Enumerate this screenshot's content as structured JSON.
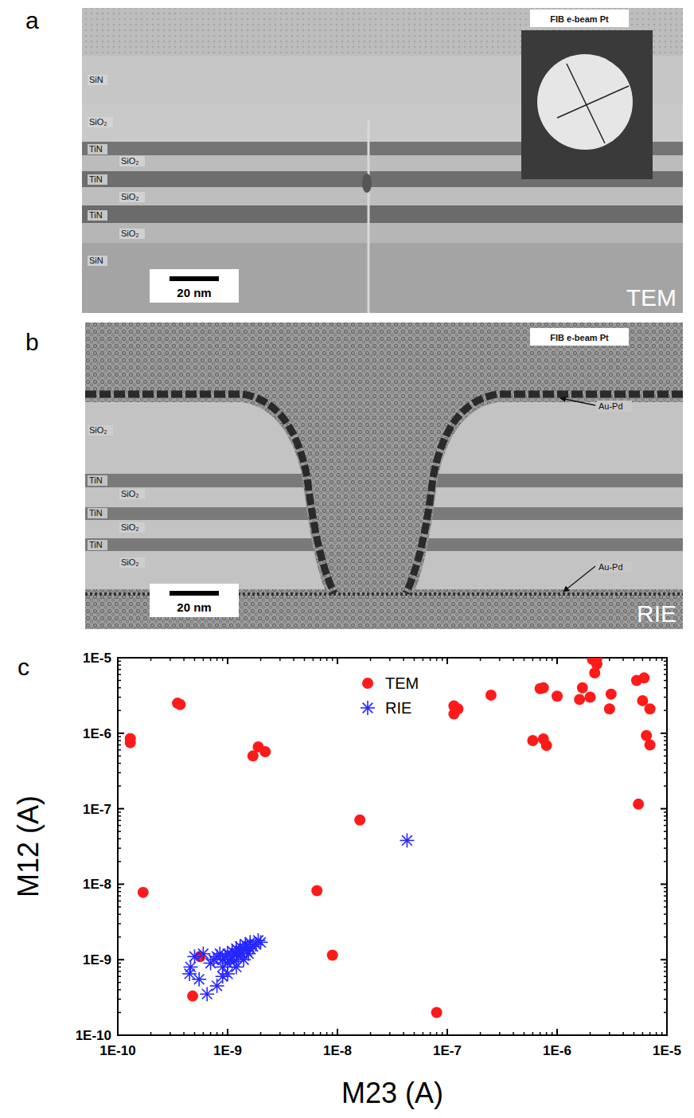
{
  "panels": [
    {
      "letter": "a",
      "header": "FIB e-beam Pt",
      "layers": [
        "SiN",
        "SiO₂",
        "TiN",
        "SiO₂",
        "TiN",
        "SiO₂",
        "TiN",
        "SiO₂",
        "SiN"
      ],
      "scale_bar": "20 nm",
      "method": "TEM"
    },
    {
      "letter": "b",
      "header": "FIB e-beam Pt",
      "layers": [
        "SiO₂",
        "TiN",
        "SiO₂",
        "TiN",
        "SiO₂",
        "TiN",
        "SiO₂"
      ],
      "annotations": [
        "Au-Pd",
        "Au-Pd"
      ],
      "scale_bar": "20 nm",
      "method": "RIE"
    }
  ],
  "chart_data": {
    "letter": "c",
    "type": "scatter",
    "x_label": "M23 (A)",
    "y_label": "M12 (A)",
    "log": true,
    "legend": "top",
    "xlim": [
      1e-10,
      1e-05
    ],
    "ylim": [
      1e-10,
      1e-05
    ],
    "xticks": [
      {
        "value": 1e-10,
        "label": "1E-10"
      },
      {
        "value": 1e-09,
        "label": "1E-9"
      },
      {
        "value": 1e-08,
        "label": "1E-8"
      },
      {
        "value": 1e-07,
        "label": "1E-7"
      },
      {
        "value": 1e-06,
        "label": "1E-6"
      },
      {
        "value": 1e-05,
        "label": "1E-5"
      }
    ],
    "yticks": [
      {
        "value": 1e-10,
        "label": "1E-10"
      },
      {
        "value": 1e-09,
        "label": "1E-9"
      },
      {
        "value": 1e-08,
        "label": "1E-8"
      },
      {
        "value": 1e-07,
        "label": "1E-7"
      },
      {
        "value": 1e-06,
        "label": "1E-6"
      },
      {
        "value": 1e-05,
        "label": "1E-5"
      }
    ],
    "series": [
      {
        "name": "TEM",
        "color": "#ff1a1a",
        "marker": "circle",
        "x": [
          1.3e-10,
          1.3e-10,
          3.5e-10,
          3.7e-10,
          1.7e-10,
          1.7e-09,
          1.9e-09,
          2.2e-09,
          6.5e-09,
          1.6e-08,
          9e-09,
          8e-08,
          4.8e-10,
          5.6e-10,
          1.15e-07,
          1.15e-07,
          1.25e-07,
          2.5e-07,
          6e-07,
          7e-07,
          7.5e-07,
          7.5e-07,
          8e-07,
          1e-06,
          1.6e-06,
          1.7e-06,
          2e-06,
          2.1e-06,
          2.3e-06,
          2.2e-06,
          2.3e-06,
          3e-06,
          3.1e-06,
          5.3e-06,
          5.5e-06,
          6e-06,
          6.2e-06,
          6.5e-06,
          7e-06,
          7e-06
        ],
        "values": [
          8.5e-07,
          7.5e-07,
          2.5e-06,
          2.4e-06,
          7.8e-09,
          5e-07,
          6.6e-07,
          5.7e-07,
          8.2e-09,
          7.1e-08,
          1.15e-09,
          2e-10,
          3.3e-10,
          1.1e-09,
          1.8e-06,
          2.3e-06,
          2.1e-06,
          3.2e-06,
          8e-07,
          3.9e-06,
          4e-06,
          8.4e-07,
          6.9e-07,
          3.1e-06,
          2.8e-06,
          4e-06,
          3e-06,
          9.5e-06,
          9.8e-06,
          6.3e-06,
          8.2e-06,
          2.1e-06,
          3.3e-06,
          5e-06,
          1.15e-07,
          2.7e-06,
          5.4e-06,
          9.3e-07,
          7e-07,
          2.1e-06
        ]
      },
      {
        "name": "RIE",
        "color": "#2626ff",
        "marker": "star",
        "x": [
          4.3e-08,
          4.5e-10,
          4.6e-10,
          5e-10,
          5.5e-10,
          6e-10,
          6.5e-10,
          7e-10,
          7.5e-10,
          8e-10,
          8e-10,
          8.5e-10,
          9e-10,
          9e-10,
          9.5e-10,
          1e-09,
          1e-09,
          1e-09,
          1.05e-09,
          1.1e-09,
          1.1e-09,
          1.15e-09,
          1.2e-09,
          1.2e-09,
          1.25e-09,
          1.3e-09,
          1.3e-09,
          1.35e-09,
          1.4e-09,
          1.4e-09,
          1.45e-09,
          1.5e-09,
          1.5e-09,
          1.55e-09,
          1.6e-09,
          1.6e-09,
          1.7e-09,
          1.8e-09,
          1.9e-09,
          2e-09,
          1.2e-09,
          9e-10
        ],
        "values": [
          3.8e-08,
          6.5e-10,
          8e-10,
          1.1e-09,
          5.5e-10,
          1.2e-09,
          3.5e-10,
          9e-10,
          1e-09,
          4.5e-10,
          1.1e-09,
          1.2e-09,
          8e-10,
          1e-09,
          1.1e-09,
          6.5e-10,
          9e-10,
          1.2e-09,
          1e-09,
          1.1e-09,
          1.3e-09,
          9.5e-10,
          1.2e-09,
          1.4e-09,
          1.1e-09,
          1.3e-09,
          1.5e-09,
          1.2e-09,
          1.4e-09,
          1e-09,
          1.6e-09,
          1.3e-09,
          1.5e-09,
          1.2e-09,
          1.4e-09,
          1.7e-09,
          1.5e-09,
          1.6e-09,
          1.8e-09,
          1.7e-09,
          8e-10,
          6e-10
        ]
      }
    ]
  }
}
